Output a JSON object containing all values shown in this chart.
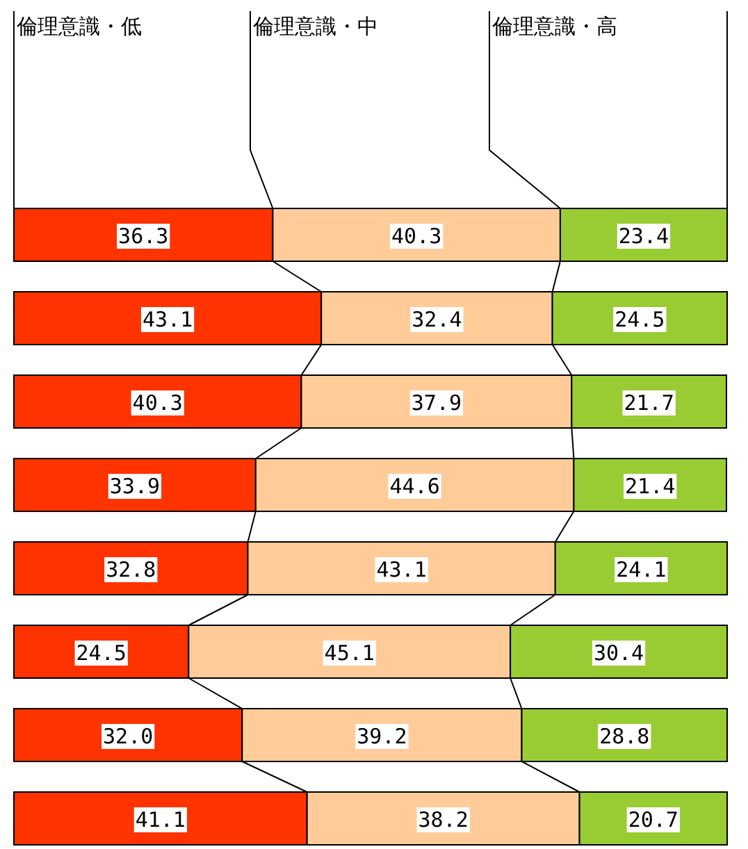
{
  "chart_data": {
    "type": "bar",
    "orientation": "horizontal",
    "stacked": true,
    "categories": [
      null,
      null,
      null,
      null,
      null,
      null,
      null,
      null
    ],
    "series": [
      {
        "name": "倫理意識・低",
        "color": "#ff3300",
        "values": [
          36.3,
          43.1,
          40.3,
          33.9,
          32.8,
          24.5,
          32.0,
          41.1
        ],
        "value_labels": [
          "36.3",
          "43.1",
          "40.3",
          "33.9",
          "32.8",
          "24.5",
          "32.0",
          "41.1"
        ]
      },
      {
        "name": "倫理意識・中",
        "color": "#ffcc99",
        "values": [
          40.3,
          32.4,
          37.9,
          44.6,
          43.1,
          45.1,
          39.2,
          38.2
        ],
        "value_labels": [
          "40.3",
          "32.4",
          "37.9",
          "44.6",
          "43.1",
          "45.1",
          "39.2",
          "38.2"
        ]
      },
      {
        "name": "倫理意識・高",
        "color": "#99cc33",
        "values": [
          23.4,
          24.5,
          21.7,
          21.4,
          24.1,
          30.4,
          28.8,
          20.7
        ],
        "value_labels": [
          "23.4",
          "24.5",
          "21.7",
          "21.4",
          "24.1",
          "30.4",
          "28.8",
          "20.7"
        ]
      }
    ],
    "xlim": [
      0,
      100
    ],
    "legend": "top"
  }
}
